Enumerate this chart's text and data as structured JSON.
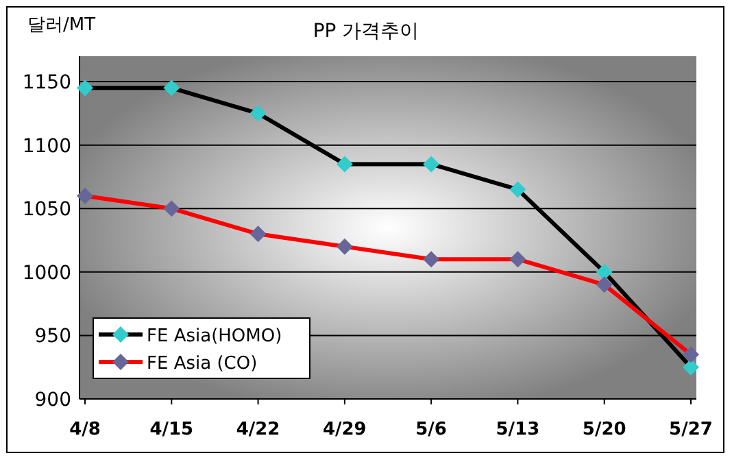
{
  "chart_data": {
    "type": "line",
    "title": "PP 가격추이",
    "ylabel": "달러/MT",
    "categories": [
      "4/8",
      "4/15",
      "4/22",
      "4/29",
      "5/6",
      "5/13",
      "5/20",
      "5/27"
    ],
    "series": [
      {
        "name": "FE Asia(HOMO)",
        "color": "#000000",
        "colors": [
          "#33cccc",
          "#33cccc",
          "#33cccc",
          "#33cccc",
          "#33cccc",
          "#33cccc",
          "#33cccc",
          "#33cccc"
        ],
        "values": [
          1145,
          1145,
          1125,
          1085,
          1085,
          1065,
          1000,
          925
        ]
      },
      {
        "name": "FE Asia (CO)",
        "color": "#ff0000",
        "colors": [
          "#666699",
          "#666699",
          "#666699",
          "#666699",
          "#666699",
          "#666699",
          "#666699",
          "#666699"
        ],
        "values": [
          1060,
          1050,
          1030,
          1020,
          1010,
          1010,
          990,
          935
        ]
      }
    ],
    "ylim": [
      900,
      1170
    ],
    "yticks": [
      900,
      950,
      1000,
      1050,
      1100,
      1150
    ],
    "grid": "y",
    "legend": "bottom left",
    "marker": "diamond",
    "line_style": "solid"
  }
}
